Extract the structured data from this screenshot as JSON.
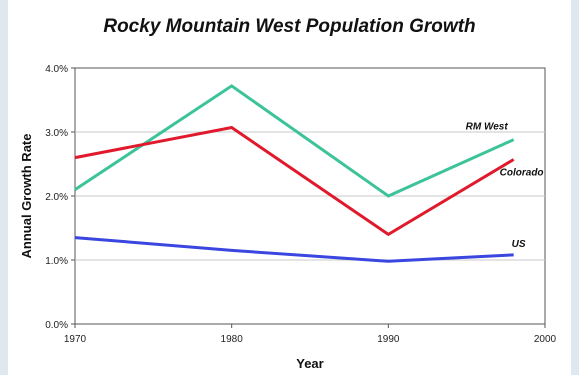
{
  "chart_data": {
    "type": "line",
    "title": "Rocky Mountain West Population Growth",
    "xlabel": "Year",
    "ylabel": "Annual Growth Rate",
    "xlim": [
      1970,
      2000
    ],
    "ylim": [
      0,
      4.0
    ],
    "x_ticks": [
      "1970",
      "1980",
      "1990",
      "2000"
    ],
    "y_ticks": [
      "0.0%",
      "1.0%",
      "2.0%",
      "3.0%",
      "4.0%"
    ],
    "grid": true,
    "series": [
      {
        "name": "RM West",
        "color": "#3cc39a",
        "x": [
          1970,
          1980,
          1990,
          1998
        ],
        "values": [
          2.1,
          3.72,
          2.0,
          2.88
        ]
      },
      {
        "name": "Colorado",
        "color": "#e01a2c",
        "x": [
          1970,
          1980,
          1990,
          1998
        ],
        "values": [
          2.6,
          3.07,
          1.4,
          2.57
        ]
      },
      {
        "name": "US",
        "color": "#3b45e0",
        "x": [
          1970,
          1980,
          1990,
          1998
        ],
        "values": [
          1.35,
          1.15,
          0.98,
          1.08
        ]
      }
    ]
  }
}
